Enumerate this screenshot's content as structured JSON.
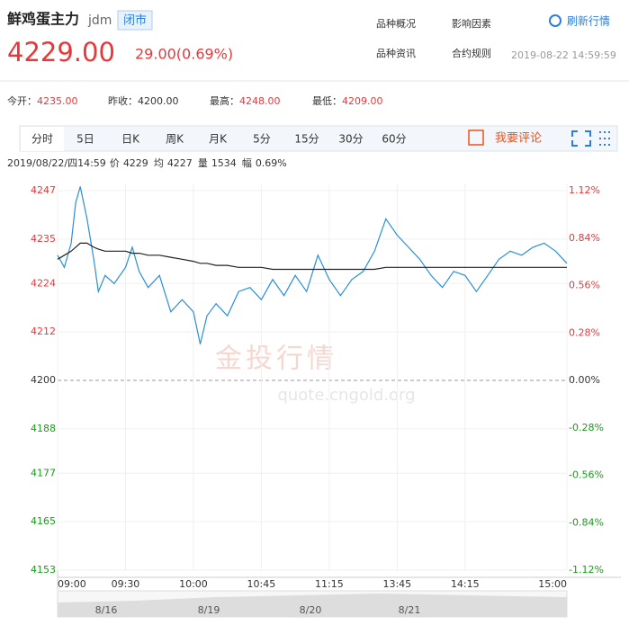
{
  "header": {
    "title": "鲜鸡蛋主力",
    "code": "jdm",
    "status": "闭市",
    "price": "4229.00",
    "change": "29.00(0.69%)",
    "links": [
      "品种概况",
      "影响因素",
      "品种资讯",
      "合约规则"
    ],
    "refresh": "刷新行情",
    "timestamp": "2019-08-22 14:59:59"
  },
  "stats": [
    {
      "label": "今开：",
      "value": "4235.00",
      "color": "#e4393c"
    },
    {
      "label": "昨收：",
      "value": "4200.00",
      "color": "#333333"
    },
    {
      "label": "最高：",
      "value": "4248.00",
      "color": "#e4393c"
    },
    {
      "label": "最低：",
      "value": "4209.00",
      "color": "#e4393c"
    }
  ],
  "tabs": [
    "分时",
    "5日",
    "日K",
    "周K",
    "月K",
    "5分",
    "15分",
    "30分",
    "60分"
  ],
  "comment": "我要评论",
  "info": {
    "time": "2019/08/22/四14:59",
    "items": [
      {
        "label": "价",
        "value": "4229"
      },
      {
        "label": "均",
        "value": "4227"
      },
      {
        "label": "量",
        "value": "1534"
      },
      {
        "label": "幅",
        "value": "0.69%"
      }
    ]
  },
  "watermark": [
    "金投行情",
    "quote.cngold.org"
  ],
  "navigator_dates": [
    "8/16",
    "8/19",
    "8/20",
    "8/21"
  ],
  "chart_data": {
    "type": "line",
    "x": [
      0,
      3,
      6,
      8,
      10,
      13,
      16,
      18,
      21,
      25,
      30,
      33,
      36,
      40,
      45,
      50,
      55,
      60,
      63,
      66,
      70,
      75,
      80,
      85,
      90,
      95,
      100,
      105,
      110,
      115,
      120,
      125,
      130,
      135,
      140,
      145,
      150,
      155,
      160,
      165,
      170,
      175,
      180,
      185,
      190,
      195,
      200,
      205,
      210,
      215,
      220,
      225
    ],
    "series": [
      {
        "name": "价",
        "color": "#2b8fd6",
        "values": [
          4231,
          4228,
          4234,
          4244,
          4248,
          4240,
          4230,
          4222,
          4226,
          4224,
          4228,
          4233,
          4227,
          4223,
          4226,
          4217,
          4220,
          4217,
          4209,
          4216,
          4219,
          4216,
          4222,
          4223,
          4220,
          4225,
          4221,
          4226,
          4222,
          4231,
          4225,
          4221,
          4225,
          4227,
          4232,
          4240,
          4236,
          4233,
          4230,
          4226,
          4223,
          4227,
          4226,
          4222,
          4226,
          4230,
          4232,
          4231,
          4233,
          4234,
          4232,
          4229
        ]
      },
      {
        "name": "均",
        "color": "#222222",
        "values": [
          4230,
          4231,
          4232,
          4233,
          4234,
          4234,
          4233,
          4232.5,
          4232,
          4232,
          4232,
          4231.5,
          4231.5,
          4231,
          4231,
          4230.5,
          4230,
          4229.5,
          4229,
          4229,
          4228.5,
          4228.5,
          4228,
          4228,
          4228,
          4227.5,
          4227.5,
          4227.5,
          4227.5,
          4227.5,
          4227.5,
          4227.5,
          4227.5,
          4227.5,
          4227.5,
          4228,
          4228,
          4228,
          4228,
          4228,
          4228,
          4228,
          4228,
          4228,
          4228,
          4228,
          4228,
          4228,
          4228,
          4228,
          4228,
          4228
        ]
      }
    ],
    "xlim": [
      0,
      225
    ],
    "xticks": [
      {
        "value": 0,
        "label": "09:00"
      },
      {
        "value": 30,
        "label": "09:30"
      },
      {
        "value": 60,
        "label": "10:00"
      },
      {
        "value": 90,
        "label": "10:45"
      },
      {
        "value": 120,
        "label": "11:15"
      },
      {
        "value": 150,
        "label": "13:45"
      },
      {
        "value": 180,
        "label": "14:15"
      },
      {
        "value": 225,
        "label": "15:00"
      }
    ],
    "ylim": [
      4153,
      4247
    ],
    "yticks": [
      4247,
      4235,
      4224,
      4212,
      4200,
      4188,
      4177,
      4165,
      4153
    ],
    "y2lim": [
      -1.12,
      1.12
    ],
    "y2ticks": [
      {
        "value": 1.12,
        "label": "1.12%"
      },
      {
        "value": 0.84,
        "label": "0.84%"
      },
      {
        "value": 0.56,
        "label": "0.56%"
      },
      {
        "value": 0.28,
        "label": "0.28%"
      },
      {
        "value": 0,
        "label": "0.00%"
      },
      {
        "value": -0.28,
        "label": "-0.28%"
      },
      {
        "value": -0.56,
        "label": "-0.56%"
      },
      {
        "value": -0.84,
        "label": "-0.84%"
      },
      {
        "value": -1.12,
        "label": "-1.12%"
      }
    ],
    "grid": true,
    "up_color": "#e4393c",
    "down_color": "#1a9a1a"
  }
}
